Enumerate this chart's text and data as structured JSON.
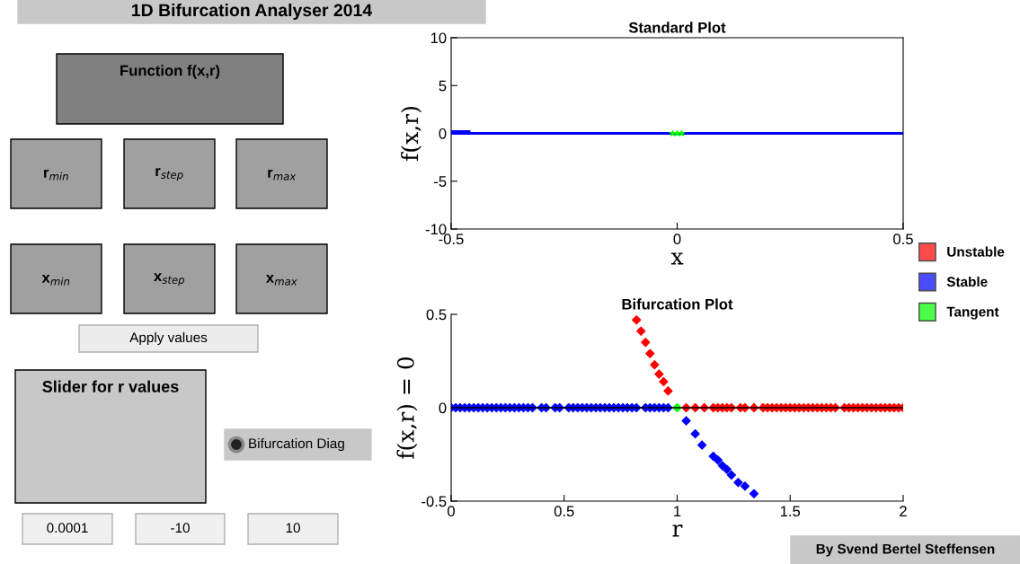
{
  "chart_data": [
    {
      "type": "line",
      "title": "Standard Plot",
      "xlabel": "x",
      "ylabel": "f(x,r)",
      "xlim": [
        -0.5,
        0.5
      ],
      "xticks": [
        -0.5,
        0,
        0.5
      ],
      "ylim": [
        -10,
        10
      ],
      "yticks": [
        -10,
        -5,
        0,
        5,
        10
      ],
      "grid": false,
      "legend": false,
      "series": [
        {
          "color": "#0000ff",
          "x": [
            -0.5,
            0.5
          ],
          "values": [
            0,
            0
          ]
        },
        {
          "color": "#0000ff",
          "x": [
            -0.5,
            -0.46
          ],
          "values": [
            0.2,
            0.2
          ]
        },
        {
          "type": "scatter",
          "marker": "star",
          "color": "#00ff00",
          "x": [
            -0.01,
            0,
            0.01
          ],
          "values": [
            0,
            0,
            0
          ]
        }
      ]
    },
    {
      "type": "scatter",
      "title": "Bifurcation Plot",
      "xlabel": "r",
      "ylabel": "f(x,r) = 0",
      "xlim": [
        0,
        2
      ],
      "xticks": [
        0,
        0.5,
        1,
        1.5,
        2
      ],
      "ylim": [
        -0.5,
        0.5
      ],
      "yticks": [
        -0.5,
        0,
        0.5
      ],
      "grid": false,
      "legend": "right",
      "marker": "diamond",
      "ref_lines": [
        {
          "axis": "y",
          "value": 0,
          "color": "#000000"
        }
      ],
      "series": [
        {
          "name": "Unstable",
          "color": "#ff0000",
          "x": [
            1.04,
            1.08,
            1.12,
            1.16,
            1.18,
            1.2,
            1.22,
            1.24,
            1.28,
            1.3,
            1.34,
            1.38,
            1.4,
            1.42,
            1.44,
            1.46,
            1.48,
            1.5,
            1.52,
            1.54,
            1.56,
            1.58,
            1.6,
            1.62,
            1.64,
            1.66,
            1.68,
            1.7,
            1.74,
            1.76,
            1.78,
            1.8,
            1.82,
            1.84,
            1.86,
            1.88,
            1.9,
            1.92,
            1.94,
            1.96,
            1.98,
            2.0,
            0.82,
            0.84,
            0.86,
            0.88,
            0.9,
            0.92,
            0.94,
            0.96
          ],
          "values": [
            0,
            0,
            0,
            0,
            0,
            0,
            0,
            0,
            0,
            0,
            0,
            0,
            0,
            0,
            0,
            0,
            0,
            0,
            0,
            0,
            0,
            0,
            0,
            0,
            0,
            0,
            0,
            0,
            0,
            0,
            0,
            0,
            0,
            0,
            0,
            0,
            0,
            0,
            0,
            0,
            0,
            0,
            0.47,
            0.41,
            0.35,
            0.29,
            0.23,
            0.18,
            0.14,
            0.09
          ]
        },
        {
          "name": "Stable",
          "color": "#0000ff",
          "x": [
            0,
            0.02,
            0.04,
            0.06,
            0.08,
            0.1,
            0.12,
            0.14,
            0.16,
            0.18,
            0.2,
            0.22,
            0.24,
            0.26,
            0.28,
            0.3,
            0.32,
            0.34,
            0.36,
            0.4,
            0.42,
            0.46,
            0.48,
            0.52,
            0.54,
            0.56,
            0.58,
            0.6,
            0.62,
            0.64,
            0.66,
            0.68,
            0.7,
            0.72,
            0.74,
            0.76,
            0.78,
            0.8,
            0.82,
            0.86,
            0.88,
            0.9,
            0.92,
            0.94,
            0.96,
            1.04,
            1.08,
            1.11,
            1.16,
            1.18,
            1.2,
            1.22,
            1.24,
            1.27,
            1.3,
            1.34
          ],
          "values": [
            0,
            0,
            0,
            0,
            0,
            0,
            0,
            0,
            0,
            0,
            0,
            0,
            0,
            0,
            0,
            0,
            0,
            0,
            0,
            0,
            0,
            0,
            0,
            0,
            0,
            0,
            0,
            0,
            0,
            0,
            0,
            0,
            0,
            0,
            0,
            0,
            0,
            0,
            0,
            0,
            0,
            0,
            0,
            0,
            0,
            -0.07,
            -0.14,
            -0.2,
            -0.26,
            -0.28,
            -0.31,
            -0.33,
            -0.36,
            -0.4,
            -0.42,
            -0.46
          ]
        },
        {
          "name": "Tangent",
          "color": "#00ff00",
          "x": [
            1
          ],
          "values": [
            0
          ]
        }
      ]
    },
    {
      "type": "other",
      "annotations": [
        "1D Bifurcation Analyser 2014",
        "Function f(x,r)",
        "r$_{min}$",
        "r$_{step}$",
        "r$_{max}$",
        "x$_{min}$",
        "x$_{step}$",
        "x$_{max}$",
        "Apply values",
        "Slider for r values",
        "Bifurcation Diag",
        "0.0001",
        "-10",
        "10",
        "By Svend Bertel Steffensen"
      ]
    }
  ]
}
